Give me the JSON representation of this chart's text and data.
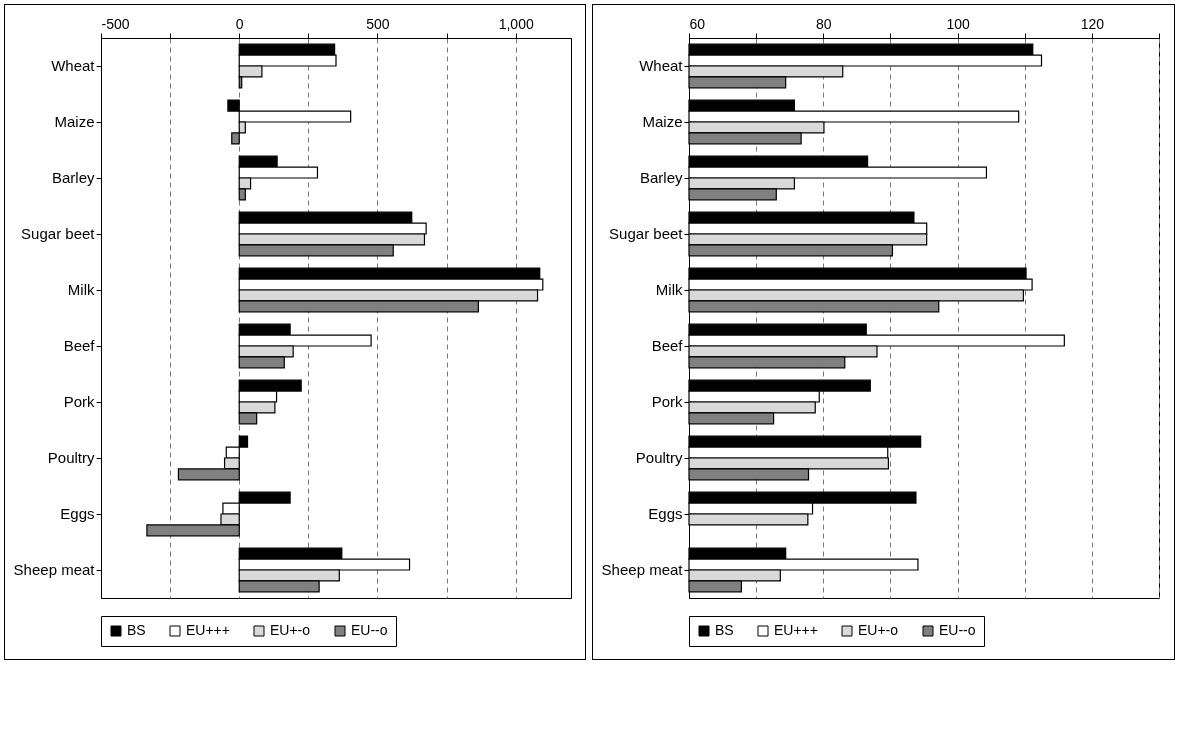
{
  "chart_data": [
    {
      "type": "bar",
      "orientation": "horizontal",
      "categories": [
        "Wheat",
        "Maize",
        "Barley",
        "Sugar beet",
        "Milk",
        "Beef",
        "Pork",
        "Poultry",
        "Eggs",
        "Sheep meat"
      ],
      "series": [
        {
          "name": "BS",
          "color": "#000000",
          "values": [
            345,
            -41,
            137,
            624,
            1087,
            184,
            224,
            30,
            184,
            371
          ]
        },
        {
          "name": "EU+++",
          "color": "#ffffff",
          "values": [
            350,
            403,
            283,
            676,
            1098,
            477,
            135,
            -47,
            -59,
            616
          ]
        },
        {
          "name": "EU+-o",
          "color": "#d9d9d9",
          "values": [
            82,
            22,
            41,
            670,
            1079,
            195,
            129,
            -53,
            -66,
            362
          ]
        },
        {
          "name": "EU--o",
          "color": "#808080",
          "values": [
            9,
            -27,
            22,
            557,
            865,
            163,
            63,
            -220,
            -334,
            289
          ]
        }
      ],
      "xlim": [
        -500,
        1200
      ],
      "xticks": [
        -500,
        {
          "value": -250,
          "label": null
        },
        0,
        {
          "value": 250,
          "label": null
        },
        500,
        {
          "value": 750,
          "label": null
        },
        {
          "value": 1000,
          "label": "1,000"
        }
      ],
      "grid": "x",
      "legend": "bottom"
    },
    {
      "type": "bar",
      "orientation": "horizontal",
      "categories": [
        "Wheat",
        "Maize",
        "Barley",
        "Sugar beet",
        "Milk",
        "Beef",
        "Pork",
        "Poultry",
        "Eggs",
        "Sheep meat"
      ],
      "series": [
        {
          "name": "BS",
          "color": "#000000",
          "values": [
            111.2,
            75.7,
            86.6,
            93.5,
            110.2,
            86.4,
            87.0,
            94.5,
            93.8,
            74.4
          ]
        },
        {
          "name": "EU+++",
          "color": "#ffffff",
          "values": [
            112.5,
            109.1,
            104.3,
            95.4,
            111.1,
            115.9,
            79.4,
            89.6,
            78.4,
            94.1
          ]
        },
        {
          "name": "EU+-o",
          "color": "#d9d9d9",
          "values": [
            82.9,
            80.1,
            75.7,
            95.4,
            109.8,
            88.0,
            78.8,
            89.7,
            77.7,
            73.6
          ]
        },
        {
          "name": "EU--o",
          "color": "#808080",
          "values": [
            74.4,
            76.7,
            73.0,
            90.3,
            97.2,
            83.2,
            72.6,
            77.8,
            null,
            67.8
          ]
        }
      ],
      "xlim": [
        60,
        130
      ],
      "xticks": [
        60,
        {
          "value": 70,
          "label": null
        },
        80,
        {
          "value": 90,
          "label": null
        },
        100,
        {
          "value": 110,
          "label": null
        },
        120,
        {
          "value": 130,
          "label": null
        }
      ],
      "grid": "x",
      "legend": "bottom"
    }
  ]
}
